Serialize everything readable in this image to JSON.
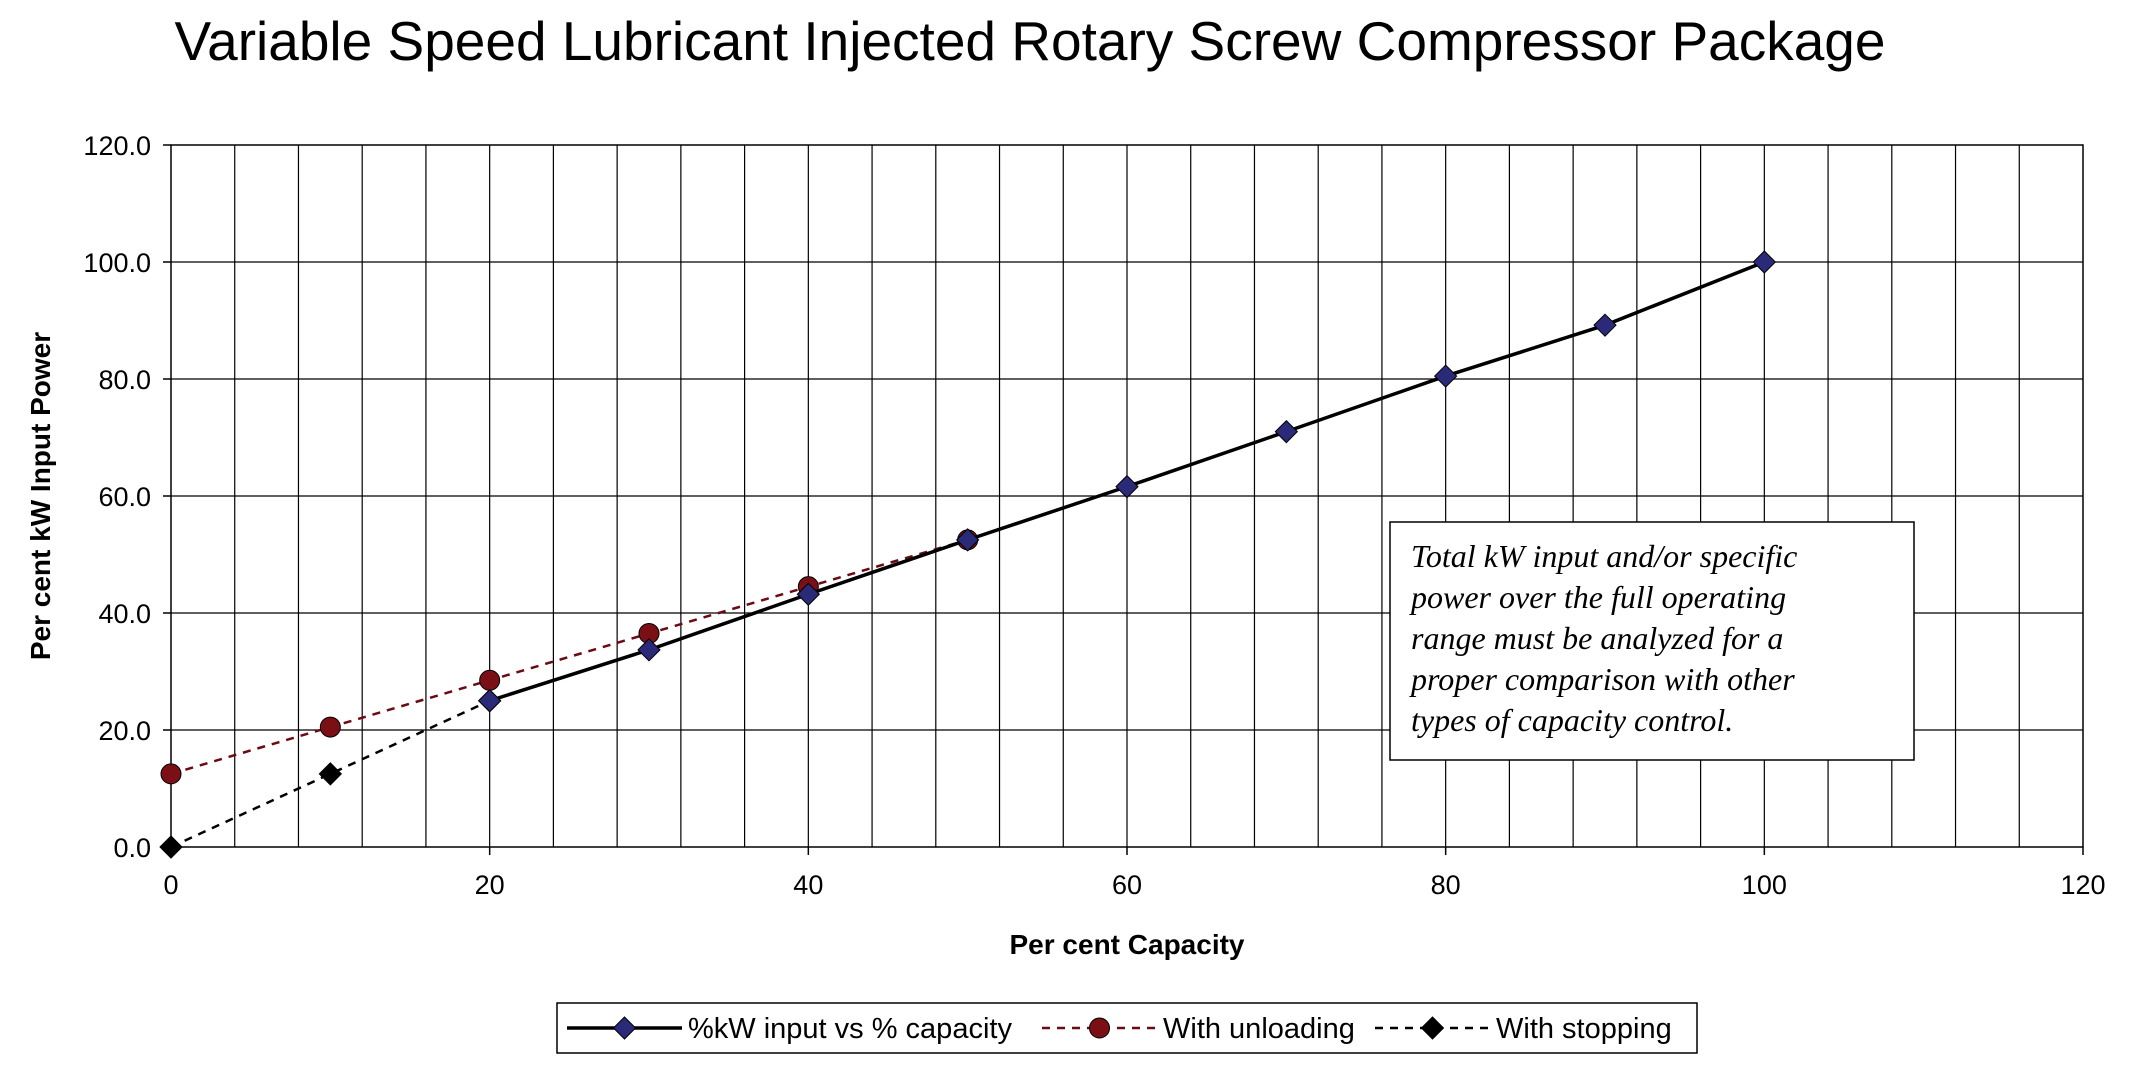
{
  "chart_data": {
    "type": "line",
    "title": "Variable Speed Lubricant Injected Rotary Screw Compressor Package",
    "xlabel": "Per cent Capacity",
    "ylabel": "Per cent kW Input Power",
    "xlim": [
      0,
      120
    ],
    "ylim": [
      0,
      120
    ],
    "x_ticks": [
      "0",
      "20",
      "40",
      "60",
      "80",
      "100",
      "120"
    ],
    "y_ticks": [
      "0.0",
      "20.0",
      "40.0",
      "60.0",
      "80.0",
      "100.0",
      "120.0"
    ],
    "grid": true,
    "legend_position": "bottom",
    "series": [
      {
        "name": "%kW input vs % capacity",
        "color": "#000000",
        "marker_color": "#2b2a78",
        "marker": "diamond",
        "line_style": "solid",
        "x": [
          20,
          30,
          40,
          50,
          60,
          70,
          80,
          90,
          100
        ],
        "y": [
          25.0,
          33.7,
          43.2,
          52.5,
          61.6,
          71.0,
          80.5,
          89.2,
          100.0
        ]
      },
      {
        "name": "With unloading",
        "color": "#6b0a14",
        "marker_color": "#7a1016",
        "marker": "circle",
        "line_style": "dashed",
        "x": [
          0,
          10,
          20,
          30,
          40,
          50
        ],
        "y": [
          12.5,
          20.5,
          28.5,
          36.5,
          44.5,
          52.5
        ]
      },
      {
        "name": "With stopping",
        "color": "#000000",
        "marker_color": "#000000",
        "marker": "diamond",
        "line_style": "dashed",
        "x": [
          0,
          10,
          20
        ],
        "y": [
          0.0,
          12.5,
          25.0
        ]
      }
    ],
    "annotation": {
      "lines": [
        "Total kW input and/or specific",
        "power over the full operating",
        "range must be analyzed for a",
        "proper comparison with other",
        "types of capacity control."
      ]
    }
  }
}
